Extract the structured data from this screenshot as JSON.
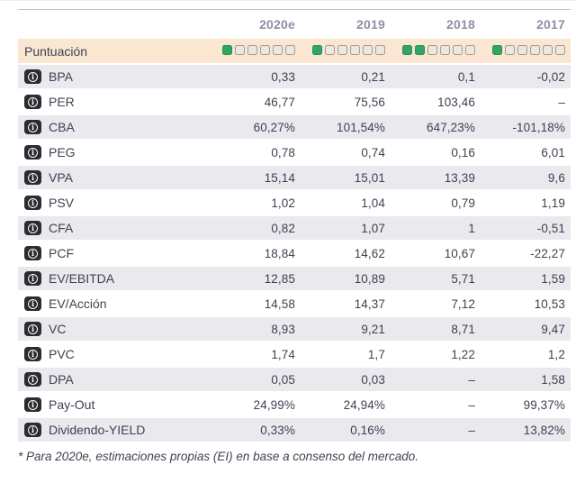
{
  "header": {
    "year_columns": [
      "2020e",
      "2019",
      "2018",
      "2017"
    ]
  },
  "score_row": {
    "label": "Puntuación",
    "max_squares": 6,
    "ratings": [
      1,
      1,
      2,
      1
    ]
  },
  "rows": [
    {
      "label": "BPA",
      "values": [
        "0,33",
        "0,21",
        "0,1",
        "-0,02"
      ]
    },
    {
      "label": "PER",
      "values": [
        "46,77",
        "75,56",
        "103,46",
        "–"
      ]
    },
    {
      "label": "CBA",
      "values": [
        "60,27%",
        "101,54%",
        "647,23%",
        "-101,18%"
      ]
    },
    {
      "label": "PEG",
      "values": [
        "0,78",
        "0,74",
        "0,16",
        "6,01"
      ]
    },
    {
      "label": "VPA",
      "values": [
        "15,14",
        "15,01",
        "13,39",
        "9,6"
      ]
    },
    {
      "label": "PSV",
      "values": [
        "1,02",
        "1,04",
        "0,79",
        "1,19"
      ]
    },
    {
      "label": "CFA",
      "values": [
        "0,82",
        "1,07",
        "1",
        "-0,51"
      ]
    },
    {
      "label": "PCF",
      "values": [
        "18,84",
        "14,62",
        "10,67",
        "-22,27"
      ]
    },
    {
      "label": "EV/EBITDA",
      "values": [
        "12,85",
        "10,89",
        "5,71",
        "1,59"
      ]
    },
    {
      "label": "EV/Acción",
      "values": [
        "14,58",
        "14,37",
        "7,12",
        "10,53"
      ]
    },
    {
      "label": "VC",
      "values": [
        "8,93",
        "9,21",
        "8,71",
        "9,47"
      ]
    },
    {
      "label": "PVC",
      "values": [
        "1,74",
        "1,7",
        "1,22",
        "1,2"
      ]
    },
    {
      "label": "DPA",
      "values": [
        "0,05",
        "0,03",
        "–",
        "1,58"
      ]
    },
    {
      "label": "Pay-Out",
      "values": [
        "24,99%",
        "24,94%",
        "–",
        "99,37%"
      ]
    },
    {
      "label": "Dividendo-YIELD",
      "values": [
        "0,33%",
        "0,16%",
        "–",
        "13,82%"
      ]
    }
  ],
  "footnote": "* Para 2020e, estimaciones propias (EI) en base a consenso del mercado.",
  "icons": {
    "info_glyph": "i"
  },
  "colors": {
    "score_row_bg": "#fae6d1",
    "stripe_row_bg": "#e9e9ee",
    "rating_filled": "#31a563",
    "rating_empty": "#ece7df",
    "year_text": "#8f8fa6",
    "body_text": "#3d4350",
    "info_badge_bg": "#2b2b31"
  },
  "chart_data": {
    "type": "table",
    "columns": [
      "",
      "2020e",
      "2019",
      "2018",
      "2017"
    ],
    "score": {
      "label": "Puntuación",
      "scale_max": 6,
      "filled": [
        1,
        1,
        2,
        1
      ]
    },
    "rows": [
      [
        "BPA",
        "0,33",
        "0,21",
        "0,1",
        "-0,02"
      ],
      [
        "PER",
        "46,77",
        "75,56",
        "103,46",
        "–"
      ],
      [
        "CBA",
        "60,27%",
        "101,54%",
        "647,23%",
        "-101,18%"
      ],
      [
        "PEG",
        "0,78",
        "0,74",
        "0,16",
        "6,01"
      ],
      [
        "VPA",
        "15,14",
        "15,01",
        "13,39",
        "9,6"
      ],
      [
        "PSV",
        "1,02",
        "1,04",
        "0,79",
        "1,19"
      ],
      [
        "CFA",
        "0,82",
        "1,07",
        "1",
        "-0,51"
      ],
      [
        "PCF",
        "18,84",
        "14,62",
        "10,67",
        "-22,27"
      ],
      [
        "EV/EBITDA",
        "12,85",
        "10,89",
        "5,71",
        "1,59"
      ],
      [
        "EV/Acción",
        "14,58",
        "14,37",
        "7,12",
        "10,53"
      ],
      [
        "VC",
        "8,93",
        "9,21",
        "8,71",
        "9,47"
      ],
      [
        "PVC",
        "1,74",
        "1,7",
        "1,22",
        "1,2"
      ],
      [
        "DPA",
        "0,05",
        "0,03",
        "–",
        "1,58"
      ],
      [
        "Pay-Out",
        "24,99%",
        "24,94%",
        "–",
        "99,37%"
      ],
      [
        "Dividendo-YIELD",
        "0,33%",
        "0,16%",
        "–",
        "13,82%"
      ]
    ],
    "footnote": "* Para 2020e, estimaciones propias (EI) en base a consenso del mercado."
  }
}
